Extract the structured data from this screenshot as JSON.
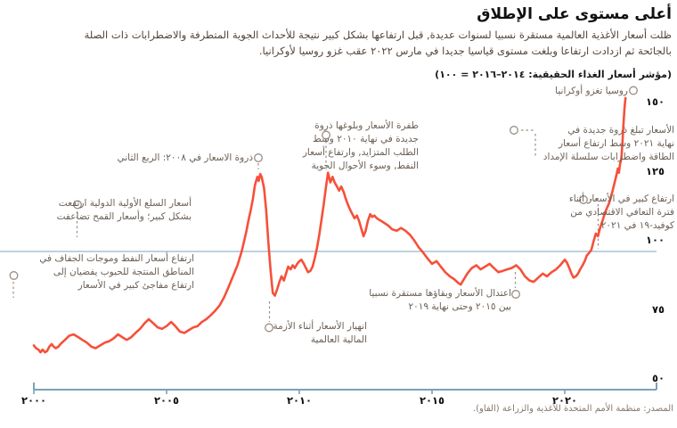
{
  "header": {
    "title": "أعلى مستوى على الإطلاق",
    "subtitle": "ظلت أسعار الأغذية العالمية مستقرة نسبيا لسنوات عديدة, قبل ارتفاعها بشكل كبير نتيجة للأحداث الجوية المتطرفة والاضطرابات ذات الصلة بالجائحة ثم ازدادت ارتفاعا وبلغت مستوى قياسيا جديدا في مارس ٢٠٢٢ عقب غزو روسيا لأوكرانيا.",
    "index_note": "(مؤشر أسعار الغذاء الحقيقية: ٢٠١٤–٢٠١٦ = ١٠٠)"
  },
  "source": "المصدر: منظمة الأمم المتحدة للأغذية والزراعة (الفاو).",
  "annotations": {
    "russia": {
      "lines": [
        "روسيا تغزو أوكرانيا"
      ]
    },
    "peak2021": {
      "lines": [
        "الأسعار تبلغ ذروة جديدة في",
        "نهاية ٢٠٢١ وسط ارتفاع أسعار",
        "الطاقة واضطرابات سلسلة الإمداد"
      ]
    },
    "covid": {
      "lines": [
        "ارتفاع كبير في الأسعار أثناء",
        "فترة التعافي الاقتصادي من",
        "كوفيد-١٩ في ٢٠٢١"
      ]
    },
    "surge2010": {
      "lines": [
        "طفرة الأسعار وبلوغها ذروة",
        "جديدة في نهاية ٢٠١٠ وسط",
        "الطلب المتزايد, وارتفاع أسعار",
        "النفط, وسوء الأحوال الجوية"
      ]
    },
    "peak2008": {
      "lines": [
        "ذروة الاسعار في ٢٠٠٨: الربع الثاني"
      ]
    },
    "commodities": {
      "lines": [
        "أسعار السلع الأولية الدولية ارتفعت",
        "بشكل كبير؛ وأسعار القمح تضاعفت"
      ]
    },
    "oildrought": {
      "lines": [
        "ارتفاع أسعار النفط وموجات الجفاف في",
        "المناطق المنتجة للحبوب يفضيان إلى",
        "ارتفاع مفاجئ كبير في الأسعار"
      ]
    },
    "collapse": {
      "lines": [
        "انهيار الأسعار أثناء الأزمة",
        "المالية العالمية"
      ]
    },
    "moderate": {
      "lines": [
        "اعتدال الأسعار وبقاؤها مستقرة نسبيا",
        "بين ٢٠١٥ وحتى نهاية ٢٠١٩"
      ]
    }
  },
  "chart_data": {
    "type": "line",
    "title": "أعلى مستوى على الإطلاق",
    "ylabel": "مؤشر أسعار الغذاء الحقيقية (٢٠١٤–٢٠١٦ = ١٠٠)",
    "xlim": [
      2000,
      2022.6
    ],
    "ylim": [
      50,
      158
    ],
    "x_ticks": [
      {
        "value": 2000,
        "label": "٢٠٠٠"
      },
      {
        "value": 2005,
        "label": "٢٠٠٥"
      },
      {
        "value": 2010,
        "label": "٢٠١٠"
      },
      {
        "value": 2015,
        "label": "٢٠١٥"
      },
      {
        "value": 2020,
        "label": "٢٠٢٠"
      }
    ],
    "y_ticks": [
      {
        "value": 50,
        "label": "٥٠"
      },
      {
        "value": 75,
        "label": "٧٥"
      },
      {
        "value": 100,
        "label": "١٠٠"
      },
      {
        "value": 125,
        "label": "١٢٥"
      },
      {
        "value": 150,
        "label": "١٥٠"
      }
    ],
    "gridline_values": [
      100
    ],
    "line_color": "#f6503a",
    "grid_color": "#a9c3d3",
    "axis_color": "#7aa2b8",
    "pointer_color": "#998e83",
    "series": [
      {
        "name": "مؤشر أسعار الغذاء الحقيقية",
        "points": [
          [
            2000.0,
            66
          ],
          [
            2000.08,
            65
          ],
          [
            2000.17,
            64.5
          ],
          [
            2000.25,
            63.5
          ],
          [
            2000.33,
            64.5
          ],
          [
            2000.42,
            63.5
          ],
          [
            2000.5,
            64
          ],
          [
            2000.58,
            65.5
          ],
          [
            2000.67,
            66.5
          ],
          [
            2000.75,
            65.5
          ],
          [
            2000.83,
            65
          ],
          [
            2000.92,
            65.5
          ],
          [
            2001.0,
            66.5
          ],
          [
            2001.17,
            68
          ],
          [
            2001.33,
            69.5
          ],
          [
            2001.5,
            70
          ],
          [
            2001.67,
            69
          ],
          [
            2001.83,
            68
          ],
          [
            2002.0,
            67
          ],
          [
            2002.17,
            65.5
          ],
          [
            2002.33,
            65
          ],
          [
            2002.5,
            66
          ],
          [
            2002.67,
            67
          ],
          [
            2002.83,
            67.5
          ],
          [
            2003.0,
            68.5
          ],
          [
            2003.17,
            70
          ],
          [
            2003.33,
            69
          ],
          [
            2003.5,
            68
          ],
          [
            2003.67,
            69
          ],
          [
            2003.83,
            70.5
          ],
          [
            2004.0,
            72
          ],
          [
            2004.17,
            74
          ],
          [
            2004.33,
            75.5
          ],
          [
            2004.5,
            74
          ],
          [
            2004.67,
            72.5
          ],
          [
            2004.83,
            72
          ],
          [
            2005.0,
            73
          ],
          [
            2005.17,
            74.5
          ],
          [
            2005.33,
            73
          ],
          [
            2005.5,
            71
          ],
          [
            2005.67,
            70.5
          ],
          [
            2005.83,
            71.5
          ],
          [
            2006.0,
            72.5
          ],
          [
            2006.17,
            73
          ],
          [
            2006.33,
            74.5
          ],
          [
            2006.5,
            75.5
          ],
          [
            2006.67,
            77
          ],
          [
            2006.83,
            78.5
          ],
          [
            2007.0,
            80.5
          ],
          [
            2007.17,
            83.5
          ],
          [
            2007.33,
            87
          ],
          [
            2007.5,
            91
          ],
          [
            2007.67,
            95
          ],
          [
            2007.83,
            100
          ],
          [
            2008.0,
            107
          ],
          [
            2008.08,
            111
          ],
          [
            2008.17,
            115
          ],
          [
            2008.25,
            119
          ],
          [
            2008.33,
            124
          ],
          [
            2008.42,
            127
          ],
          [
            2008.47,
            125.5
          ],
          [
            2008.53,
            128
          ],
          [
            2008.58,
            127
          ],
          [
            2008.67,
            123
          ],
          [
            2008.75,
            115
          ],
          [
            2008.83,
            104
          ],
          [
            2008.92,
            93
          ],
          [
            2009.0,
            85
          ],
          [
            2009.08,
            84
          ],
          [
            2009.17,
            86.5
          ],
          [
            2009.25,
            89
          ],
          [
            2009.33,
            91
          ],
          [
            2009.42,
            89.5
          ],
          [
            2009.5,
            92
          ],
          [
            2009.58,
            94.5
          ],
          [
            2009.67,
            93.5
          ],
          [
            2009.75,
            95
          ],
          [
            2009.83,
            94
          ],
          [
            2009.92,
            95.5
          ],
          [
            2010.0,
            96.5
          ],
          [
            2010.08,
            97
          ],
          [
            2010.17,
            95.5
          ],
          [
            2010.25,
            94
          ],
          [
            2010.33,
            92.5
          ],
          [
            2010.42,
            93
          ],
          [
            2010.5,
            94.5
          ],
          [
            2010.58,
            97.5
          ],
          [
            2010.67,
            101.5
          ],
          [
            2010.75,
            106
          ],
          [
            2010.83,
            111
          ],
          [
            2010.92,
            117
          ],
          [
            2011.0,
            123
          ],
          [
            2011.08,
            128.5
          ],
          [
            2011.17,
            125
          ],
          [
            2011.25,
            127
          ],
          [
            2011.33,
            125
          ],
          [
            2011.42,
            123.5
          ],
          [
            2011.5,
            122
          ],
          [
            2011.58,
            123.5
          ],
          [
            2011.67,
            121.5
          ],
          [
            2011.75,
            119
          ],
          [
            2011.83,
            117
          ],
          [
            2011.92,
            115
          ],
          [
            2012.0,
            113.5
          ],
          [
            2012.08,
            112
          ],
          [
            2012.17,
            113
          ],
          [
            2012.25,
            111
          ],
          [
            2012.33,
            108.5
          ],
          [
            2012.42,
            105.5
          ],
          [
            2012.5,
            107.5
          ],
          [
            2012.58,
            111
          ],
          [
            2012.67,
            113.5
          ],
          [
            2012.75,
            112.5
          ],
          [
            2012.83,
            113
          ],
          [
            2012.92,
            112
          ],
          [
            2013.0,
            111.5
          ],
          [
            2013.17,
            110.5
          ],
          [
            2013.33,
            109.5
          ],
          [
            2013.5,
            108
          ],
          [
            2013.67,
            107.5
          ],
          [
            2013.83,
            108.5
          ],
          [
            2014.0,
            107.5
          ],
          [
            2014.17,
            106
          ],
          [
            2014.33,
            104
          ],
          [
            2014.5,
            101.5
          ],
          [
            2014.67,
            99.5
          ],
          [
            2014.83,
            97.5
          ],
          [
            2015.0,
            95.5
          ],
          [
            2015.17,
            96.5
          ],
          [
            2015.33,
            94.5
          ],
          [
            2015.5,
            92.5
          ],
          [
            2015.67,
            91
          ],
          [
            2015.83,
            90
          ],
          [
            2016.0,
            88.5
          ],
          [
            2016.08,
            88
          ],
          [
            2016.17,
            89.5
          ],
          [
            2016.33,
            92
          ],
          [
            2016.5,
            94
          ],
          [
            2016.67,
            95
          ],
          [
            2016.83,
            93.5
          ],
          [
            2017.0,
            94.5
          ],
          [
            2017.17,
            95.5
          ],
          [
            2017.33,
            94
          ],
          [
            2017.5,
            92.5
          ],
          [
            2017.67,
            93
          ],
          [
            2017.83,
            93.5
          ],
          [
            2018.0,
            94
          ],
          [
            2018.17,
            95
          ],
          [
            2018.33,
            93.5
          ],
          [
            2018.5,
            91
          ],
          [
            2018.67,
            89.5
          ],
          [
            2018.83,
            89
          ],
          [
            2019.0,
            90.5
          ],
          [
            2019.17,
            92
          ],
          [
            2019.33,
            91
          ],
          [
            2019.5,
            92.5
          ],
          [
            2019.67,
            93.5
          ],
          [
            2019.83,
            95
          ],
          [
            2020.0,
            97
          ],
          [
            2020.08,
            96
          ],
          [
            2020.17,
            94
          ],
          [
            2020.25,
            92
          ],
          [
            2020.33,
            90.5
          ],
          [
            2020.42,
            91
          ],
          [
            2020.5,
            92
          ],
          [
            2020.58,
            93.5
          ],
          [
            2020.67,
            95
          ],
          [
            2020.75,
            96.5
          ],
          [
            2020.83,
            98.5
          ],
          [
            2020.92,
            99.5
          ],
          [
            2021.0,
            100.5
          ],
          [
            2021.08,
            103.5
          ],
          [
            2021.17,
            106.5
          ],
          [
            2021.25,
            105.5
          ],
          [
            2021.33,
            108.5
          ],
          [
            2021.42,
            111
          ],
          [
            2021.5,
            113.5
          ],
          [
            2021.58,
            115.5
          ],
          [
            2021.67,
            117.5
          ],
          [
            2021.75,
            120
          ],
          [
            2021.83,
            123
          ],
          [
            2021.92,
            126.5
          ],
          [
            2022.0,
            130
          ],
          [
            2022.04,
            128.5
          ],
          [
            2022.08,
            131.5
          ],
          [
            2022.13,
            133.5
          ],
          [
            2022.17,
            139
          ],
          [
            2022.21,
            146
          ],
          [
            2022.25,
            152
          ],
          [
            2022.29,
            155.5
          ]
        ]
      }
    ],
    "legend": null,
    "grid": "horizontal-only"
  }
}
